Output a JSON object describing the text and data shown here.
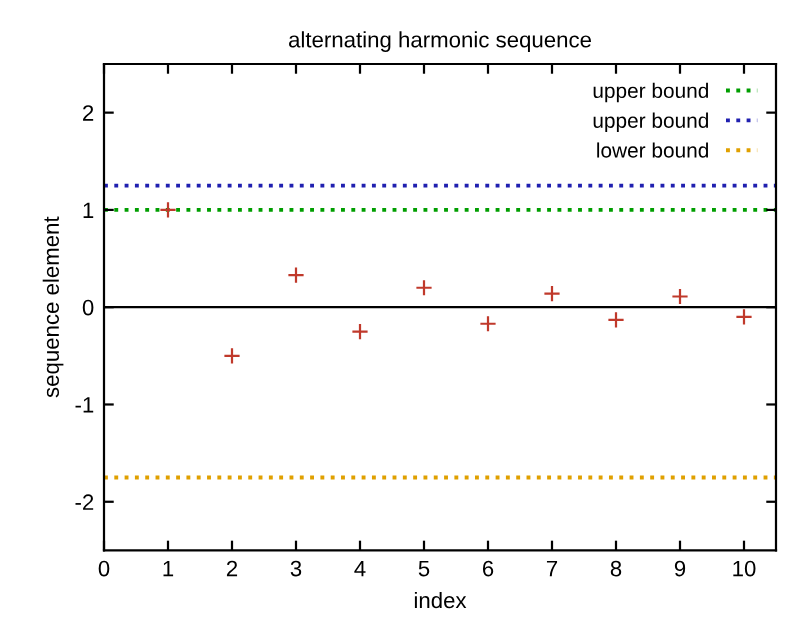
{
  "chart_data": {
    "type": "scatter",
    "title": "alternating harmonic sequence",
    "xlabel": "index",
    "ylabel": "sequence element",
    "x": [
      1,
      2,
      3,
      4,
      5,
      6,
      7,
      8,
      9,
      10
    ],
    "series": [
      {
        "color": "#c0392b",
        "marker": "cross",
        "values": [
          1,
          -0.5,
          0.33,
          -0.25,
          0.2,
          -0.17,
          0.14,
          -0.13,
          0.11,
          -0.1
        ]
      }
    ],
    "ref_lines": [
      {
        "axis": "y",
        "value": 1,
        "label": "upper bound",
        "color": "#009e00",
        "line_style": "dotted"
      },
      {
        "axis": "y",
        "value": 1.25,
        "label": "upper bound",
        "color": "#2020b0",
        "line_style": "dotted"
      },
      {
        "axis": "y",
        "value": -1.75,
        "label": "lower bound",
        "color": "#e0a000",
        "line_style": "dotted"
      },
      {
        "axis": "y",
        "value": 0,
        "color": "#000000",
        "line_style": "solid"
      }
    ],
    "xlim": [
      0,
      10.5
    ],
    "xticks": [
      0,
      1,
      2,
      3,
      4,
      5,
      6,
      7,
      8,
      9,
      10
    ],
    "ylim": [
      -2.5,
      2.5
    ],
    "yticks": [
      -2,
      -1,
      0,
      1,
      2
    ],
    "grid": false,
    "legend": "top right"
  }
}
